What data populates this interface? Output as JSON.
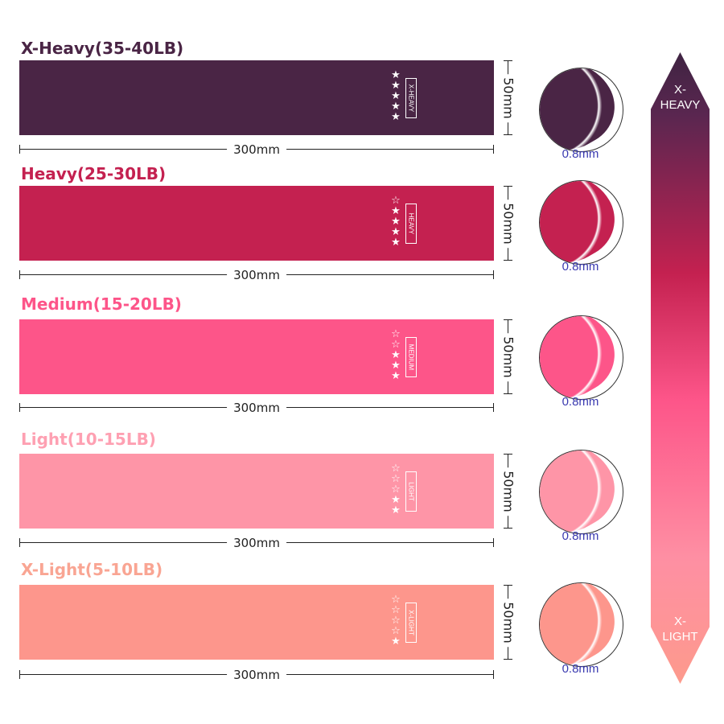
{
  "bands": [
    {
      "title": "X-Heavy(35-40LB)",
      "tag": "X-HEAVY",
      "stars_filled": 5,
      "stars_total": 5,
      "color": "#4a2545",
      "title_color": "#4a2545",
      "length": "300mm",
      "width": "50mm",
      "thickness": "0.8mm"
    },
    {
      "title": "Heavy(25-30LB)",
      "tag": "HEAVY",
      "stars_filled": 4,
      "stars_total": 5,
      "color": "#c42150",
      "title_color": "#c42150",
      "length": "300mm",
      "width": "50mm",
      "thickness": "0.8mm"
    },
    {
      "title": "Medium(15-20LB)",
      "tag": "MEDIUM",
      "stars_filled": 3,
      "stars_total": 5,
      "color": "#fd5589",
      "title_color": "#fd5589",
      "length": "300mm",
      "width": "50mm",
      "thickness": "0.8mm"
    },
    {
      "title": "Light(10-15LB)",
      "tag": "LIGHT",
      "stars_filled": 2,
      "stars_total": 5,
      "color": "#fe95a7",
      "title_color": "#fea0b2",
      "length": "300mm",
      "width": "50mm",
      "thickness": "0.8mm"
    },
    {
      "title": "X-Light(5-10LB)",
      "tag": "X-LIGHT",
      "stars_filled": 1,
      "stars_total": 5,
      "color": "#fd968c",
      "title_color": "#f9a593",
      "length": "300mm",
      "width": "50mm",
      "thickness": "0.8mm"
    }
  ],
  "scale": {
    "top_line1": "X-",
    "top_line2": "HEAVY",
    "bottom_line1": "X-",
    "bottom_line2": "LIGHT"
  }
}
